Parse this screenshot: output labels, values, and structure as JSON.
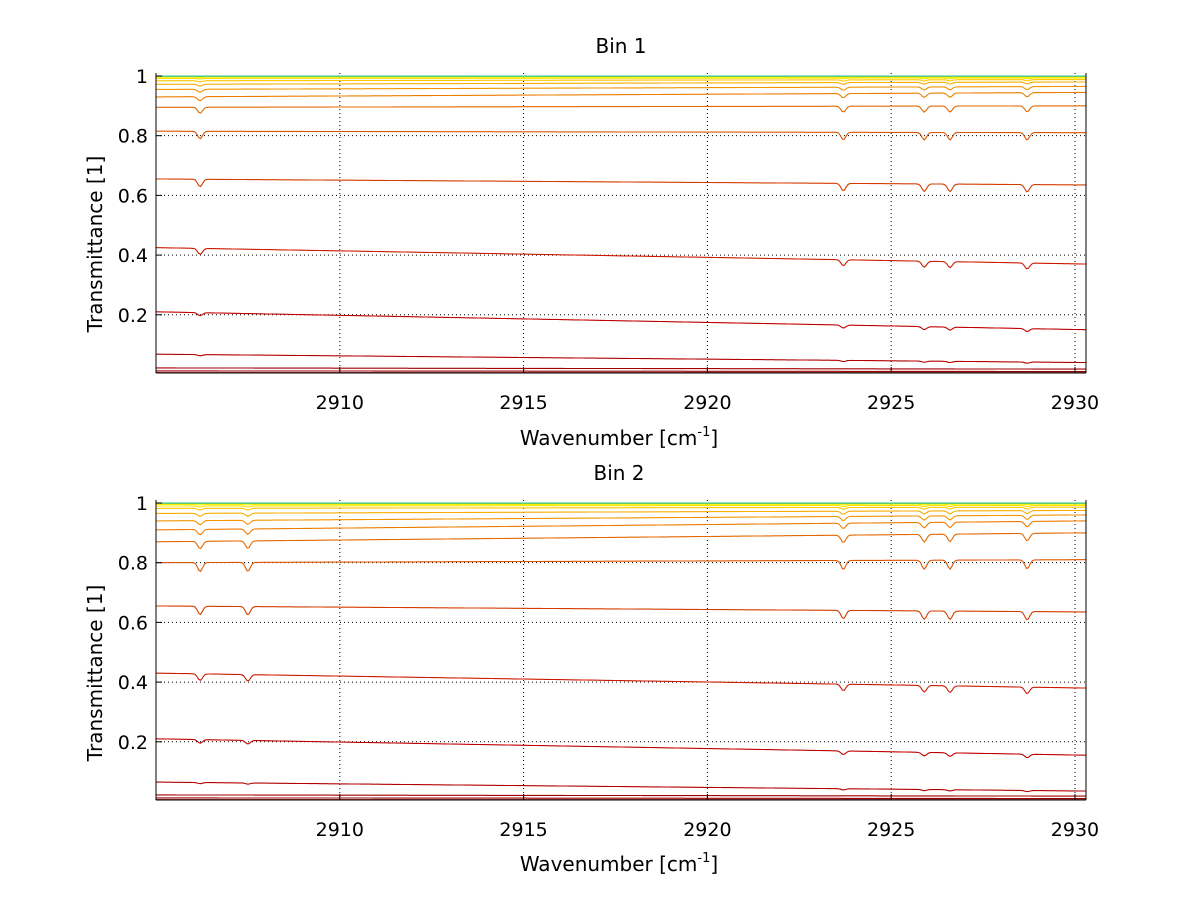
{
  "chart_data": [
    {
      "type": "line",
      "title": "Bin 1",
      "xlabel": "Wavenumber [cm",
      "xlabel_sup": "-1",
      "xlabel_end": "]",
      "ylabel": "Transmittance [1]",
      "xlim": [
        2905.0,
        2930.3
      ],
      "ylim": [
        0.005,
        1.01
      ],
      "xticks": [
        2910,
        2915,
        2920,
        2925,
        2930
      ],
      "xtick_labels": [
        "2910",
        "2915",
        "2920",
        "2925",
        "2930"
      ],
      "yticks": [
        0.2,
        0.4,
        0.6,
        0.8,
        1.0
      ],
      "ytick_labels": [
        "0.2",
        "0.4",
        "0.6",
        "0.8",
        "1"
      ],
      "grid": true,
      "grid_style": "dotted",
      "absorption_lines": [
        2906.2,
        2923.7,
        2925.9,
        2926.6,
        2928.7
      ],
      "series": [
        {
          "start": 0.006,
          "end": 0.006,
          "dip": 0.0,
          "color": "#8b0000"
        },
        {
          "start": 0.012,
          "end": 0.01,
          "dip": 0.0,
          "color": "#990000"
        },
        {
          "start": 0.022,
          "end": 0.018,
          "dip": 0.0,
          "color": "#a30000"
        },
        {
          "start": 0.068,
          "end": 0.04,
          "dip": 0.004,
          "color": "#b00000"
        },
        {
          "start": 0.21,
          "end": 0.15,
          "dip": 0.01,
          "color": "#c00000"
        },
        {
          "start": 0.425,
          "end": 0.37,
          "dip": 0.02,
          "color": "#cc1a00"
        },
        {
          "start": 0.655,
          "end": 0.635,
          "dip": 0.025,
          "color": "#d43c00"
        },
        {
          "start": 0.815,
          "end": 0.81,
          "dip": 0.025,
          "color": "#de5500"
        },
        {
          "start": 0.895,
          "end": 0.9,
          "dip": 0.02,
          "color": "#e46800"
        },
        {
          "start": 0.93,
          "end": 0.945,
          "dip": 0.014,
          "color": "#ec7d00"
        },
        {
          "start": 0.955,
          "end": 0.965,
          "dip": 0.01,
          "color": "#f29300"
        },
        {
          "start": 0.972,
          "end": 0.98,
          "dip": 0.006,
          "color": "#f8ad00"
        },
        {
          "start": 0.984,
          "end": 0.988,
          "dip": 0.004,
          "color": "#ffc800"
        },
        {
          "start": 0.992,
          "end": 0.993,
          "dip": 0.002,
          "color": "#ffe300"
        },
        {
          "start": 0.996,
          "end": 0.996,
          "dip": 0.001,
          "color": "#fff200"
        },
        {
          "start": 0.998,
          "end": 0.998,
          "dip": 0.0,
          "color": "#c8e600"
        },
        {
          "start": 0.999,
          "end": 0.999,
          "dip": 0.0,
          "color": "#7fd23c"
        },
        {
          "start": 1.0,
          "end": 1.0,
          "dip": 0.0,
          "color": "#30c0a8"
        }
      ]
    },
    {
      "type": "line",
      "title": "Bin 2",
      "xlabel": "Wavenumber [cm",
      "xlabel_sup": "-1",
      "xlabel_end": "]",
      "ylabel": "Transmittance [1]",
      "xlim": [
        2905.0,
        2930.3
      ],
      "ylim": [
        0.005,
        1.01
      ],
      "xticks": [
        2910,
        2915,
        2920,
        2925,
        2930
      ],
      "xtick_labels": [
        "2910",
        "2915",
        "2920",
        "2925",
        "2930"
      ],
      "yticks": [
        0.2,
        0.4,
        0.6,
        0.8,
        1.0
      ],
      "ytick_labels": [
        "0.2",
        "0.4",
        "0.6",
        "0.8",
        "1"
      ],
      "grid": true,
      "grid_style": "dotted",
      "absorption_lines": [
        2906.2,
        2907.5,
        2923.7,
        2925.9,
        2926.6,
        2928.7
      ],
      "series": [
        {
          "start": 0.006,
          "end": 0.006,
          "dip": 0.0,
          "color": "#8b0000"
        },
        {
          "start": 0.012,
          "end": 0.01,
          "dip": 0.0,
          "color": "#990000"
        },
        {
          "start": 0.022,
          "end": 0.018,
          "dip": 0.0,
          "color": "#a30000"
        },
        {
          "start": 0.065,
          "end": 0.035,
          "dip": 0.004,
          "color": "#b00000"
        },
        {
          "start": 0.21,
          "end": 0.155,
          "dip": 0.012,
          "color": "#c00000"
        },
        {
          "start": 0.43,
          "end": 0.38,
          "dip": 0.022,
          "color": "#cc1a00"
        },
        {
          "start": 0.655,
          "end": 0.635,
          "dip": 0.028,
          "color": "#d43c00"
        },
        {
          "start": 0.8,
          "end": 0.81,
          "dip": 0.03,
          "color": "#de5500"
        },
        {
          "start": 0.87,
          "end": 0.9,
          "dip": 0.025,
          "color": "#e46800"
        },
        {
          "start": 0.91,
          "end": 0.94,
          "dip": 0.018,
          "color": "#ec7d00"
        },
        {
          "start": 0.94,
          "end": 0.96,
          "dip": 0.014,
          "color": "#f29300"
        },
        {
          "start": 0.965,
          "end": 0.975,
          "dip": 0.01,
          "color": "#f8ad00"
        },
        {
          "start": 0.982,
          "end": 0.986,
          "dip": 0.006,
          "color": "#ffc800"
        },
        {
          "start": 0.99,
          "end": 0.992,
          "dip": 0.004,
          "color": "#ffe300"
        },
        {
          "start": 0.995,
          "end": 0.996,
          "dip": 0.002,
          "color": "#fff200"
        },
        {
          "start": 0.998,
          "end": 0.998,
          "dip": 0.0,
          "color": "#c8e600"
        },
        {
          "start": 0.999,
          "end": 0.999,
          "dip": 0.0,
          "color": "#7fd23c"
        },
        {
          "start": 1.0,
          "end": 1.0,
          "dip": 0.0,
          "color": "#30c0a8"
        }
      ]
    }
  ]
}
